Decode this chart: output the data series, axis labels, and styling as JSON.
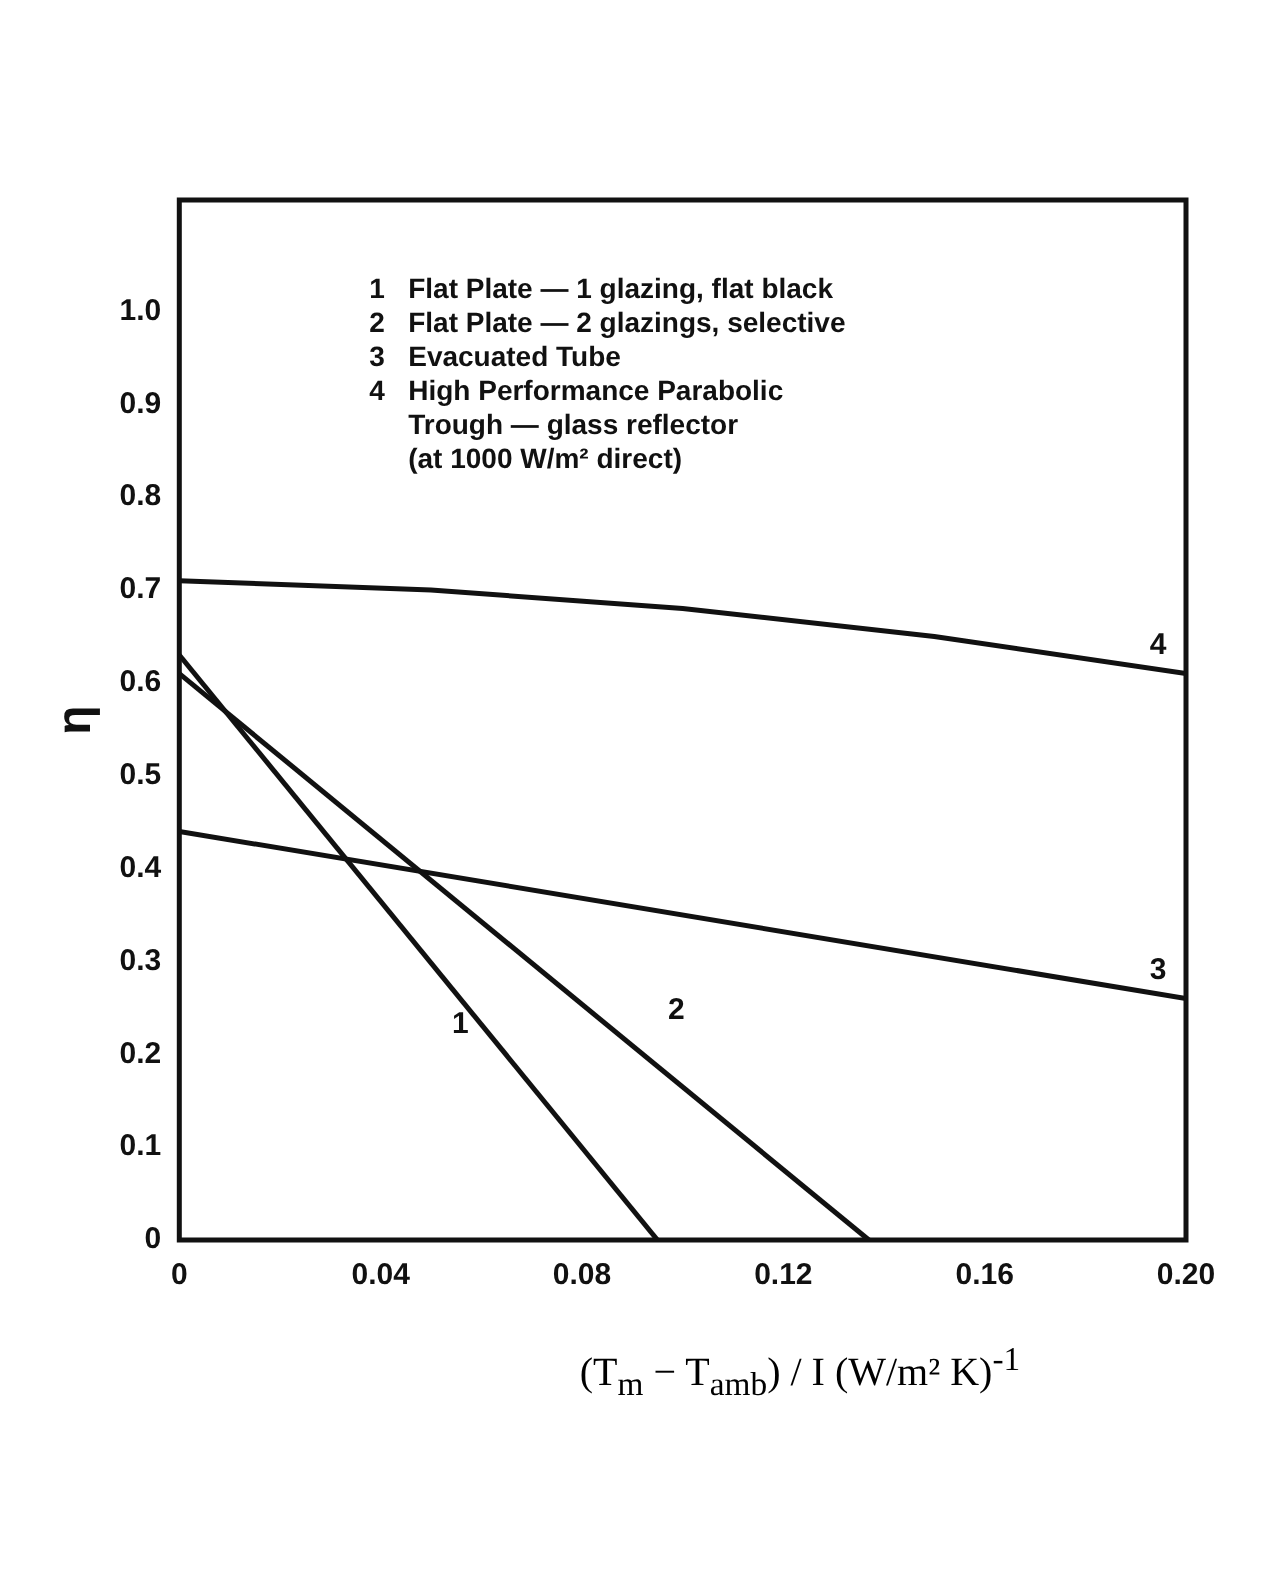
{
  "chart_data": {
    "type": "line",
    "ylabel": "η",
    "xlabel": "(T$_{m}$ − T$_{amb}$) / I   (W/m² K)$^{-1}$",
    "xlim": [
      0,
      0.2
    ],
    "xticks": [
      0,
      0.04,
      0.08,
      0.12,
      {
        "value": 0.16,
        "label": "0.16"
      },
      {
        "value": 0.2,
        "label": "0.20"
      }
    ],
    "ylim": [
      0,
      1.12
    ],
    "yticks": [
      0,
      0.1,
      0.2,
      0.3,
      0.4,
      0.5,
      0.6,
      0.7,
      0.8,
      0.9,
      {
        "value": 1,
        "label": "1.0"
      }
    ],
    "grid": false,
    "legend": false,
    "marker": "none",
    "line_style": "solid",
    "series": [
      {
        "name": "1",
        "color": "#111111",
        "x": [
          0,
          0.095
        ],
        "values": [
          0.63,
          0
        ]
      },
      {
        "name": "2",
        "color": "#111111",
        "x": [
          0,
          0.137
        ],
        "values": [
          0.61,
          0
        ]
      },
      {
        "name": "3",
        "color": "#111111",
        "x": [
          0,
          0.2
        ],
        "values": [
          0.44,
          0.26
        ]
      },
      {
        "name": "4",
        "color": "#111111",
        "x": [
          0,
          0.05,
          0.1,
          0.15,
          0.2
        ],
        "values": [
          0.71,
          0.7,
          0.68,
          0.65,
          0.61
        ]
      }
    ],
    "annotations": [
      "1   Flat Plate — 1 glazing, flat black",
      "2   Flat Plate — 2 glazings, selective",
      "3   Evacuated Tube",
      "4   High Performance Parabolic",
      "     Trough — glass reflector",
      "     (at 1000 W/m² direct)"
    ]
  }
}
